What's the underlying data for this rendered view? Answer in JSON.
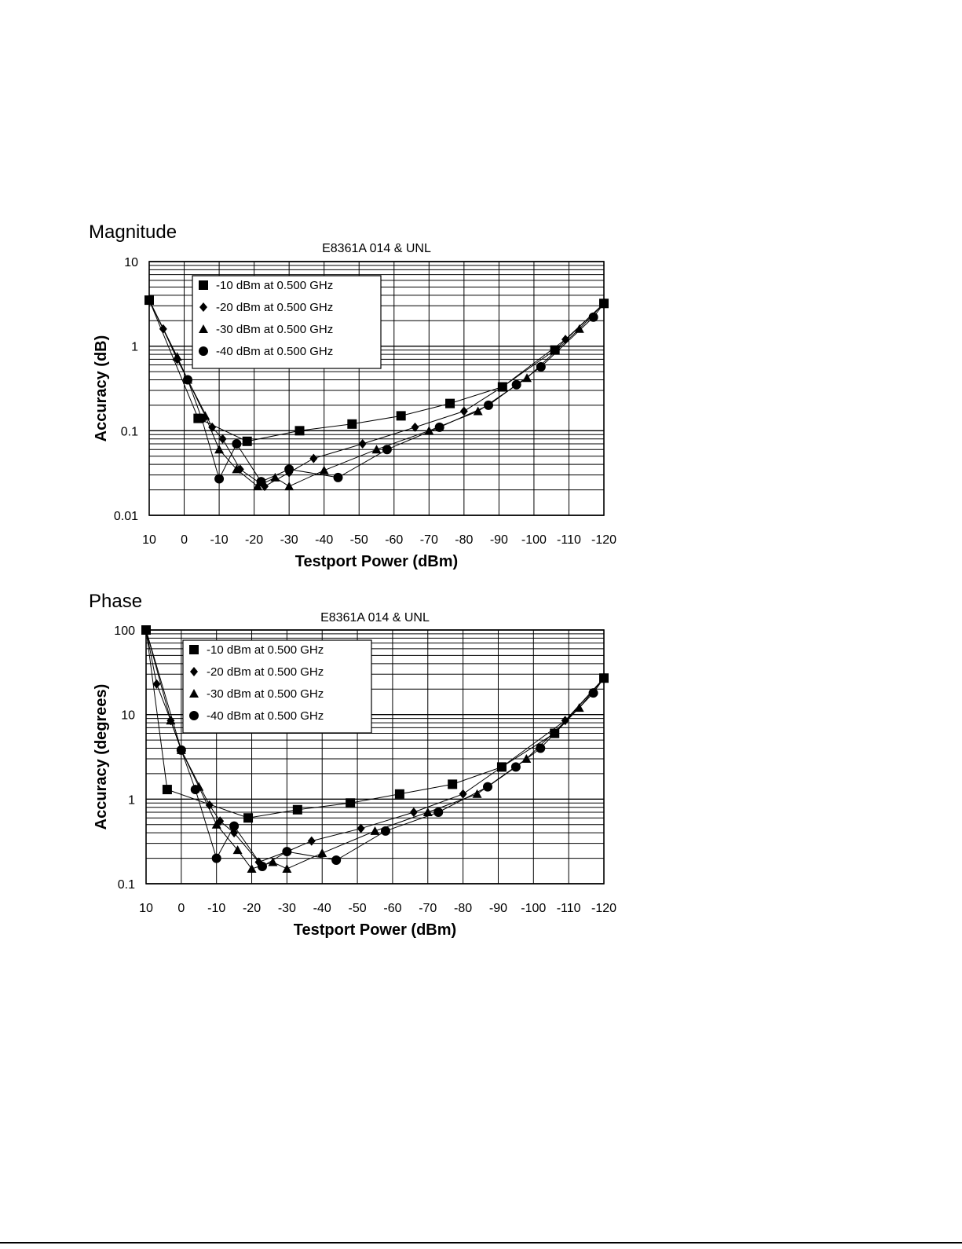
{
  "chart_data": [
    {
      "type": "line",
      "heading": "Magnitude",
      "title": "E8361A 014 & UNL",
      "xlabel": "Testport Power (dBm)",
      "ylabel": "Accuracy (dB)",
      "y_scale": "log",
      "xlim": [
        10,
        -120
      ],
      "ylim": [
        0.01,
        10
      ],
      "x_ticks": [
        10,
        0,
        -10,
        -20,
        -30,
        -40,
        -50,
        -60,
        -70,
        -80,
        -90,
        -100,
        -110,
        -120
      ],
      "x_tick_labels": [
        "10",
        "0",
        "-10",
        "-20",
        "-30",
        "-40",
        "-50",
        "-60",
        "-70",
        "-80",
        "-90",
        "-100",
        "-110",
        "-120"
      ],
      "y_ticks": [
        0.01,
        0.1,
        1,
        10
      ],
      "y_tick_labels": [
        "0.01",
        "0.1",
        "1",
        "10"
      ],
      "grid": true,
      "legend_position": "top-left",
      "series": [
        {
          "name": "-10 dBm at 0.500 GHz",
          "marker": "square",
          "x": [
            10,
            -4,
            -18,
            -33,
            -48,
            -62,
            -76,
            -91,
            -106,
            -120
          ],
          "y": [
            3.5,
            0.14,
            0.075,
            0.1,
            0.12,
            0.15,
            0.21,
            0.33,
            0.9,
            3.2
          ]
        },
        {
          "name": "-20 dBm at 0.500 GHz",
          "marker": "diamond",
          "x": [
            10,
            6,
            2,
            -1,
            -8,
            -11,
            -16,
            -23,
            -30,
            -37,
            -51,
            -66,
            -80,
            -91,
            -109,
            -120
          ],
          "y": [
            3.5,
            1.6,
            0.7,
            0.4,
            0.11,
            0.08,
            0.035,
            0.022,
            0.032,
            0.047,
            0.07,
            0.11,
            0.17,
            0.33,
            1.2,
            3.2
          ]
        },
        {
          "name": "-30 dBm at 0.500 GHz",
          "marker": "triangle",
          "x": [
            10,
            2,
            -1,
            -6,
            -10,
            -15,
            -21,
            -26,
            -30,
            -40,
            -55,
            -70,
            -84,
            -98,
            -113,
            -120
          ],
          "y": [
            3.5,
            0.75,
            0.4,
            0.15,
            0.06,
            0.035,
            0.022,
            0.028,
            0.022,
            0.034,
            0.06,
            0.1,
            0.17,
            0.42,
            1.6,
            3.2
          ]
        },
        {
          "name": "-40 dBm at 0.500 GHz",
          "marker": "circle",
          "x": [
            10,
            -1,
            -5,
            -10,
            -15,
            -22,
            -30,
            -44,
            -58,
            -73,
            -87,
            -95,
            -102,
            -117,
            -120
          ],
          "y": [
            3.5,
            0.4,
            0.14,
            0.027,
            0.07,
            0.025,
            0.035,
            0.028,
            0.06,
            0.11,
            0.2,
            0.35,
            0.57,
            2.2,
            3.2
          ]
        }
      ]
    },
    {
      "type": "line",
      "heading": "Phase",
      "title": "E8361A 014 & UNL",
      "xlabel": "Testport Power (dBm)",
      "ylabel": "Accuracy (degrees)",
      "y_scale": "log",
      "xlim": [
        10,
        -120
      ],
      "ylim": [
        0.1,
        100
      ],
      "x_ticks": [
        10,
        0,
        -10,
        -20,
        -30,
        -40,
        -50,
        -60,
        -70,
        -80,
        -90,
        -100,
        -110,
        -120
      ],
      "x_tick_labels": [
        "10",
        "0",
        "-10",
        "-20",
        "-30",
        "-40",
        "-50",
        "-60",
        "-70",
        "-80",
        "-90",
        "-100",
        "-110",
        "-120"
      ],
      "y_ticks": [
        0.1,
        1,
        10,
        100
      ],
      "y_tick_labels": [
        "0.1",
        "1",
        "10",
        "100"
      ],
      "grid": true,
      "legend_position": "top-left",
      "series": [
        {
          "name": "-10 dBm at 0.500 GHz",
          "marker": "square",
          "x": [
            10,
            4,
            -19,
            -33,
            -48,
            -62,
            -77,
            -91,
            -106,
            -120
          ],
          "y": [
            100,
            1.3,
            0.6,
            0.75,
            0.9,
            1.15,
            1.5,
            2.4,
            6,
            27
          ]
        },
        {
          "name": "-20 dBm at 0.500 GHz",
          "marker": "diamond",
          "x": [
            10,
            7,
            3,
            0,
            -8,
            -11,
            -15,
            -22,
            -30,
            -37,
            -51,
            -66,
            -80,
            -91,
            -109,
            -120
          ],
          "y": [
            100,
            23,
            8.5,
            3.8,
            0.85,
            0.55,
            0.4,
            0.18,
            0.24,
            0.32,
            0.45,
            0.7,
            1.15,
            2.4,
            8.5,
            27
          ]
        },
        {
          "name": "-30 dBm at 0.500 GHz",
          "marker": "triangle",
          "x": [
            10,
            3,
            0,
            -5,
            -10,
            -16,
            -20,
            -26,
            -30,
            -40,
            -55,
            -70,
            -84,
            -98,
            -113,
            -120
          ],
          "y": [
            100,
            8.5,
            3.8,
            1.4,
            0.5,
            0.25,
            0.15,
            0.18,
            0.15,
            0.23,
            0.42,
            0.7,
            1.15,
            3,
            12,
            27
          ]
        },
        {
          "name": "-40 dBm at 0.500 GHz",
          "marker": "circle",
          "x": [
            10,
            0,
            -4,
            -10,
            -15,
            -23,
            -30,
            -44,
            -58,
            -73,
            -87,
            -95,
            -102,
            -117,
            -120
          ],
          "y": [
            100,
            3.8,
            1.3,
            0.2,
            0.48,
            0.16,
            0.24,
            0.19,
            0.42,
            0.7,
            1.4,
            2.4,
            4,
            18,
            27
          ]
        }
      ]
    }
  ]
}
